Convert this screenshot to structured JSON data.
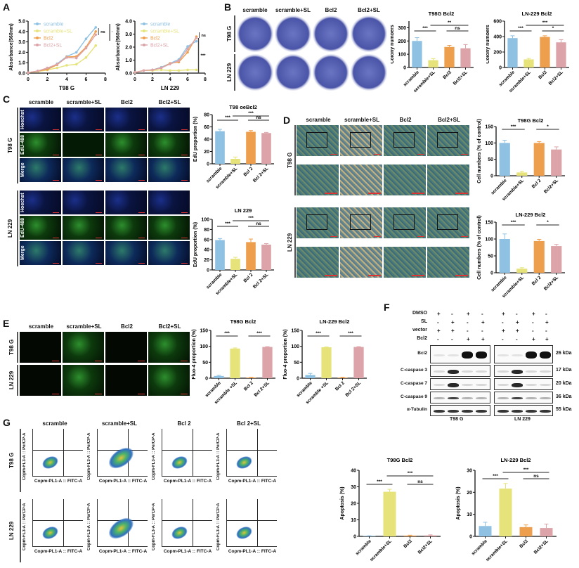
{
  "panels": {
    "A": {
      "label": "A"
    },
    "B": {
      "label": "B",
      "cols": [
        "scramble",
        "scramble+SL",
        "Bcl2",
        "Bcl2+SL"
      ],
      "rows": [
        "T98 G",
        "LN 229"
      ]
    },
    "C": {
      "label": "C",
      "cols": [
        "scramble",
        "scramble+SL",
        "Bcl2",
        "Bcl2+SL"
      ],
      "groups": [
        "T98 G",
        "LN 229"
      ],
      "stains": [
        "Hoechst",
        "EdU-488",
        "Merge"
      ]
    },
    "D": {
      "label": "D",
      "cols": [
        "scramble",
        "scramble+SL",
        "Bcl2",
        "Bcl2+SL"
      ],
      "rows": [
        "T98 G",
        "LN 229"
      ]
    },
    "E": {
      "label": "E",
      "cols": [
        "scramble",
        "scramble+SL",
        "Bcl2",
        "Bcl2+SL"
      ],
      "rows": [
        "T98 G",
        "LN 229"
      ]
    },
    "F": {
      "label": "F",
      "treatments": [
        {
          "name": "DMSO",
          "t98g": [
            "+",
            "-",
            "+",
            "-"
          ],
          "ln229": [
            "+",
            "-",
            "+",
            "-"
          ]
        },
        {
          "name": "SL",
          "t98g": [
            "-",
            "+",
            "-",
            "+"
          ],
          "ln229": [
            "-",
            "+",
            "-",
            "+"
          ]
        },
        {
          "name": "vector",
          "t98g": [
            "+",
            "+",
            "-",
            "-"
          ],
          "ln229": [
            "+",
            "+",
            "-",
            "-"
          ]
        },
        {
          "name": "Bcl2",
          "t98g": [
            "-",
            "-",
            "+",
            "+"
          ],
          "ln229": [
            "-",
            "-",
            "+",
            "+"
          ]
        }
      ],
      "blots": [
        {
          "name": "Bcl2",
          "kda": "26 kDa"
        },
        {
          "name": "C-caspase 3",
          "kda": "17 kDa"
        },
        {
          "name": "C-caspase 7",
          "kda": "20 kDa"
        },
        {
          "name": "C-caspase 9",
          "kda": "36 kDa"
        },
        {
          "name": "α-Tubulin",
          "kda": "55 kDa"
        }
      ],
      "cell_lines": [
        "T98 G",
        "LN 229"
      ]
    },
    "G": {
      "label": "G",
      "cols": [
        "scramble",
        "scramble+SL",
        "Bcl 2",
        "Bcl 2+SL"
      ],
      "rows": [
        "T98 G",
        "LN 229"
      ],
      "xaxis": "Copm-PL1-A :: FITC-A",
      "yaxis": "Copm-FL3-A :: PerCP-A"
    }
  },
  "colors": {
    "scramble": "#8fc1e3",
    "scramble_sl": "#e6e37a",
    "bcl2": "#ee9f4e",
    "bcl2_sl": "#dca3a8"
  },
  "chart_data": [
    {
      "id": "A1",
      "type": "line",
      "title": "",
      "xlabel": "T98 G",
      "ylabel": "Absorbance(560nm)",
      "x": [
        0,
        1,
        2,
        3,
        4,
        5,
        6,
        7
      ],
      "xlim": [
        0,
        8
      ],
      "ylim": [
        0,
        5
      ],
      "yticks": [
        "0.0",
        "1.0",
        "2.0",
        "3.0",
        "4.0",
        "5.0"
      ],
      "xticks": [
        "0",
        "2",
        "4",
        "6",
        "8"
      ],
      "series": [
        {
          "name": "scramble",
          "values": [
            0.05,
            0.2,
            0.4,
            0.9,
            1.6,
            2.0,
            3.3,
            4.4
          ]
        },
        {
          "name": "scramble+SL",
          "values": [
            0.05,
            0.15,
            0.3,
            0.5,
            0.75,
            0.85,
            1.5,
            2.65
          ]
        },
        {
          "name": "Bcl2",
          "values": [
            0.05,
            0.2,
            0.35,
            0.8,
            1.55,
            1.6,
            2.5,
            4.0
          ]
        },
        {
          "name": "Bcl2+SL",
          "values": [
            0.05,
            0.2,
            0.5,
            0.85,
            1.5,
            1.45,
            2.4,
            3.7
          ]
        }
      ],
      "annotations": [
        "ns",
        "***"
      ]
    },
    {
      "id": "A2",
      "type": "line",
      "title": "",
      "xlabel": "LN 229",
      "ylabel": "Absorbance(560nm)",
      "x": [
        0,
        1,
        2,
        3,
        4,
        5,
        6,
        7
      ],
      "xlim": [
        0,
        8
      ],
      "ylim": [
        0,
        4
      ],
      "yticks": [
        "0.0",
        "1.0",
        "2.0",
        "3.0",
        "4.0"
      ],
      "xticks": [
        "0",
        "2",
        "4",
        "6",
        "8"
      ],
      "series": [
        {
          "name": "scramble",
          "values": [
            0.05,
            0.2,
            0.25,
            0.45,
            0.75,
            1.05,
            2.05,
            2.45
          ]
        },
        {
          "name": "scramble+SL",
          "values": [
            0.05,
            0.2,
            0.2,
            0.25,
            0.2,
            0.2,
            0.25,
            0.25
          ]
        },
        {
          "name": "Bcl2",
          "values": [
            0.05,
            0.2,
            0.25,
            0.4,
            0.75,
            0.85,
            1.6,
            2.8
          ]
        },
        {
          "name": "Bcl2+SL",
          "values": [
            0.05,
            0.2,
            0.25,
            0.4,
            0.7,
            0.95,
            1.85,
            2.7
          ]
        }
      ],
      "annotations": [
        "ns",
        "***"
      ]
    },
    {
      "id": "B1",
      "type": "bar",
      "title": "T98G Bcl2",
      "ylabel": "Colony numbers",
      "categories": [
        "scramble",
        "scramble+SL",
        "Bcl2",
        "Bcl2+SL"
      ],
      "values": [
        200,
        55,
        155,
        145
      ],
      "errors": [
        25,
        12,
        12,
        28
      ],
      "ylim": [
        0,
        350
      ],
      "yticks": [
        "0",
        "100",
        "200",
        "300"
      ],
      "annotations": [
        {
          "pair": [
            0,
            1
          ],
          "text": "***"
        },
        {
          "pair": [
            1,
            3
          ],
          "text": "**"
        },
        {
          "pair": [
            2,
            3
          ],
          "text": "ns"
        }
      ]
    },
    {
      "id": "B2",
      "type": "bar",
      "title": "LN-229 Bcl2",
      "ylabel": "Colony numbers",
      "categories": [
        "scramble",
        "scramble+SL",
        "Bcl2",
        "Bcl2+SL"
      ],
      "values": [
        380,
        105,
        395,
        325
      ],
      "errors": [
        30,
        12,
        15,
        35
      ],
      "ylim": [
        0,
        600
      ],
      "yticks": [
        "0",
        "200",
        "400",
        "600"
      ],
      "annotations": [
        {
          "pair": [
            0,
            1
          ],
          "text": "***"
        },
        {
          "pair": [
            1,
            3
          ],
          "text": "***"
        },
        {
          "pair": [
            2,
            3
          ],
          "text": "*"
        }
      ]
    },
    {
      "id": "C1",
      "type": "bar",
      "title": "T98 oeBcl2",
      "ylabel": "EdU proportion (%)",
      "categories": [
        "scramble",
        "scramble+SL",
        "Bcl 2",
        "Bcl 2+SL"
      ],
      "values": [
        53,
        8,
        52,
        50
      ],
      "errors": [
        3,
        3,
        2,
        1
      ],
      "ylim": [
        0,
        80
      ],
      "yticks": [
        "0",
        "20",
        "40",
        "60",
        "80"
      ],
      "annotations": [
        {
          "pair": [
            0,
            1
          ],
          "text": "***"
        },
        {
          "pair": [
            1,
            3
          ],
          "text": "***"
        },
        {
          "pair": [
            2,
            3
          ],
          "text": "ns"
        }
      ]
    },
    {
      "id": "C2",
      "type": "bar",
      "title": "LN 229",
      "ylabel": "EdU proportion (%)",
      "categories": [
        "scramble",
        "scramble+SL",
        "Bcl 2",
        "Bcl 2+SL"
      ],
      "values": [
        59,
        22,
        55,
        50
      ],
      "errors": [
        3,
        3,
        6,
        2
      ],
      "ylim": [
        0,
        100
      ],
      "yticks": [
        "0",
        "20",
        "40",
        "60",
        "80",
        "100"
      ],
      "annotations": [
        {
          "pair": [
            0,
            1
          ],
          "text": "***"
        },
        {
          "pair": [
            1,
            3
          ],
          "text": "***"
        },
        {
          "pair": [
            2,
            3
          ],
          "text": "ns"
        }
      ]
    },
    {
      "id": "D1",
      "type": "bar",
      "title": "T98G Bcl2",
      "ylabel": "Cell numbers (% of control)",
      "categories": [
        "scramble",
        "scramble+SL",
        "Bcl 2",
        "Bcl2+SL"
      ],
      "values": [
        100,
        10,
        100,
        80
      ],
      "errors": [
        8,
        4,
        4,
        8
      ],
      "ylim": [
        0,
        150
      ],
      "yticks": [
        "0",
        "50",
        "100",
        "150"
      ],
      "annotations": [
        {
          "pair": [
            0,
            1
          ],
          "text": "***"
        },
        {
          "pair": [
            2,
            3
          ],
          "text": "*"
        }
      ]
    },
    {
      "id": "D2",
      "type": "bar",
      "title": "LN-229 Bcl2",
      "ylabel": "Cell numbers (% of control)",
      "categories": [
        "scramble",
        "scramble+SL",
        "Bcl 2",
        "Bcl2+SL"
      ],
      "values": [
        100,
        12,
        94,
        79
      ],
      "errors": [
        15,
        3,
        5,
        5
      ],
      "ylim": [
        0,
        150
      ],
      "yticks": [
        "0",
        "50",
        "100",
        "150"
      ],
      "annotations": [
        {
          "pair": [
            0,
            1
          ],
          "text": "***"
        },
        {
          "pair": [
            2,
            3
          ],
          "text": "*"
        }
      ]
    },
    {
      "id": "E1",
      "type": "bar",
      "title": "T98G Bcl2",
      "ylabel": "Fluo-4 proportion (%)",
      "categories": [
        "scramble",
        "scramble +SL",
        "Bcl 2",
        "Bcl 2+SL"
      ],
      "values": [
        7,
        93,
        2,
        98
      ],
      "errors": [
        2,
        2,
        1,
        1
      ],
      "ylim": [
        0,
        150
      ],
      "yticks": [
        "0",
        "50",
        "100",
        "150"
      ],
      "annotations": [
        {
          "pair": [
            0,
            1
          ],
          "text": "***"
        },
        {
          "pair": [
            2,
            3
          ],
          "text": "***"
        }
      ]
    },
    {
      "id": "E2",
      "type": "bar",
      "title": "LN-229 Bcl2",
      "ylabel": "Fluo-4 proportion (%)",
      "categories": [
        "scramble",
        "scramble +SL",
        "Bcl 2",
        "Bcl 2+SL"
      ],
      "values": [
        10,
        97,
        2,
        98
      ],
      "errors": [
        5,
        1,
        1,
        1
      ],
      "ylim": [
        0,
        150
      ],
      "yticks": [
        "0",
        "50",
        "100",
        "150"
      ],
      "annotations": [
        {
          "pair": [
            0,
            1
          ],
          "text": "***"
        },
        {
          "pair": [
            2,
            3
          ],
          "text": "***"
        }
      ]
    },
    {
      "id": "G1",
      "type": "bar",
      "title": "T98G Bcl2",
      "ylabel": "Apoptosis (%)",
      "categories": [
        "scramble",
        "scramble+SL",
        "Bcl2",
        "Bcl2+SL"
      ],
      "values": [
        0.3,
        27,
        0.5,
        0.6
      ],
      "errors": [
        0.1,
        1.5,
        0.2,
        0.3
      ],
      "ylim": [
        0,
        40
      ],
      "yticks": [
        "0",
        "10",
        "20",
        "30",
        "40"
      ],
      "annotations": [
        {
          "pair": [
            0,
            1
          ],
          "text": "***"
        },
        {
          "pair": [
            1,
            3
          ],
          "text": "***"
        },
        {
          "pair": [
            2,
            3
          ],
          "text": "ns"
        }
      ]
    },
    {
      "id": "G2",
      "type": "bar",
      "title": "LN-229 Bcl2",
      "ylabel": "Apoptosis (%)",
      "categories": [
        "scramble",
        "scramble+SL",
        "Bcl2",
        "Bcl2+SL"
      ],
      "values": [
        4.7,
        21.7,
        4.2,
        3.8
      ],
      "errors": [
        1.7,
        2.3,
        1.0,
        1.8
      ],
      "ylim": [
        0,
        30
      ],
      "yticks": [
        "0",
        "10",
        "20",
        "30"
      ],
      "annotations": [
        {
          "pair": [
            0,
            1
          ],
          "text": "***"
        },
        {
          "pair": [
            1,
            3
          ],
          "text": "***"
        },
        {
          "pair": [
            2,
            3
          ],
          "text": "ns"
        }
      ]
    }
  ]
}
